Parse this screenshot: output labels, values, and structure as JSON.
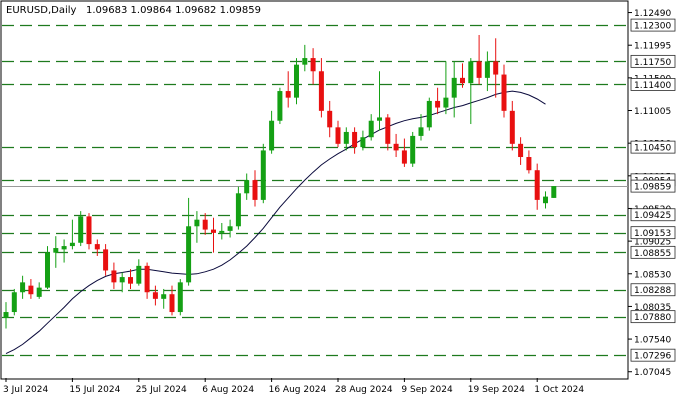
{
  "header": {
    "symbol_timeframe": "EURUSD,Daily",
    "ohlc": "1.09683 1.09864 1.09682 1.09859"
  },
  "chart_data": {
    "type": "candlestick",
    "symbol": "EURUSD",
    "timeframe": "Daily",
    "ylim": [
      1.0695,
      1.1265
    ],
    "y_ticks": [
      1.1249,
      1.11995,
      1.115,
      1.11005,
      1.1051,
      1.10015,
      1.0952,
      1.09025,
      1.0853,
      1.08035,
      1.0754,
      1.07045
    ],
    "y_tick_labels": [
      "1.12490",
      "1.11995",
      "1.11500",
      "1.11005",
      "1.10510",
      "1.10015",
      "1.09520",
      "1.09025",
      "1.08530",
      "1.08035",
      "1.07540",
      "1.07045"
    ],
    "x_tick_labels": [
      {
        "label": "3 Jul 2024",
        "bar": 0
      },
      {
        "label": "15 Jul 2024",
        "bar": 8
      },
      {
        "label": "25 Jul 2024",
        "bar": 16
      },
      {
        "label": "6 Aug 2024",
        "bar": 24
      },
      {
        "label": "16 Aug 2024",
        "bar": 32
      },
      {
        "label": "28 Aug 2024",
        "bar": 40
      },
      {
        "label": "9 Sep 2024",
        "bar": 48
      },
      {
        "label": "19 Sep 2024",
        "bar": 56
      },
      {
        "label": "1 Oct 2024",
        "bar": 64
      }
    ],
    "levels": [
      {
        "label": "1.12300",
        "value": 1.123
      },
      {
        "label": "1.11750",
        "value": 1.1175
      },
      {
        "label": "1.11400",
        "value": 1.114
      },
      {
        "label": "1.10450",
        "value": 1.1045
      },
      {
        "label": "1.09954",
        "value": 1.09954
      },
      {
        "label": "1.09425",
        "value": 1.09425
      },
      {
        "label": "1.09153",
        "value": 1.09153
      },
      {
        "label": "1.08855",
        "value": 1.08855
      },
      {
        "label": "1.08288",
        "value": 1.08288
      },
      {
        "label": "1.07880",
        "value": 1.0788
      },
      {
        "label": "1.07296",
        "value": 1.07296
      }
    ],
    "current_price": {
      "label": "1.09859",
      "value": 1.09859
    },
    "candles": [
      {
        "o": 1.0786,
        "h": 1.081,
        "l": 1.077,
        "c": 1.0795
      },
      {
        "o": 1.0795,
        "h": 1.083,
        "l": 1.079,
        "c": 1.0825
      },
      {
        "o": 1.0825,
        "h": 1.085,
        "l": 1.0815,
        "c": 1.084
      },
      {
        "o": 1.0835,
        "h": 1.0845,
        "l": 1.0815,
        "c": 1.0822
      },
      {
        "o": 1.0818,
        "h": 1.084,
        "l": 1.0815,
        "c": 1.0832
      },
      {
        "o": 1.0832,
        "h": 1.0895,
        "l": 1.083,
        "c": 1.0885
      },
      {
        "o": 1.0885,
        "h": 1.091,
        "l": 1.0862,
        "c": 1.0892
      },
      {
        "o": 1.089,
        "h": 1.0905,
        "l": 1.087,
        "c": 1.0895
      },
      {
        "o": 1.0895,
        "h": 1.0935,
        "l": 1.089,
        "c": 1.09
      },
      {
        "o": 1.09,
        "h": 1.0948,
        "l": 1.0895,
        "c": 1.094
      },
      {
        "o": 1.094,
        "h": 1.0945,
        "l": 1.089,
        "c": 1.0898
      },
      {
        "o": 1.0898,
        "h": 1.0905,
        "l": 1.088,
        "c": 1.089
      },
      {
        "o": 1.089,
        "h": 1.0898,
        "l": 1.085,
        "c": 1.0858
      },
      {
        "o": 1.0858,
        "h": 1.087,
        "l": 1.083,
        "c": 1.084
      },
      {
        "o": 1.084,
        "h": 1.0855,
        "l": 1.0825,
        "c": 1.0848
      },
      {
        "o": 1.0848,
        "h": 1.086,
        "l": 1.083,
        "c": 1.0838
      },
      {
        "o": 1.0838,
        "h": 1.0875,
        "l": 1.0835,
        "c": 1.0865
      },
      {
        "o": 1.0865,
        "h": 1.087,
        "l": 1.0815,
        "c": 1.0825
      },
      {
        "o": 1.0825,
        "h": 1.0835,
        "l": 1.0805,
        "c": 1.0815
      },
      {
        "o": 1.0815,
        "h": 1.083,
        "l": 1.08,
        "c": 1.0822
      },
      {
        "o": 1.0822,
        "h": 1.0835,
        "l": 1.079,
        "c": 1.0795
      },
      {
        "o": 1.0795,
        "h": 1.0845,
        "l": 1.079,
        "c": 1.084
      },
      {
        "o": 1.084,
        "h": 1.0968,
        "l": 1.0835,
        "c": 1.0925
      },
      {
        "o": 1.0925,
        "h": 1.0948,
        "l": 1.09,
        "c": 1.0935
      },
      {
        "o": 1.0935,
        "h": 1.0945,
        "l": 1.0912,
        "c": 1.092
      },
      {
        "o": 1.092,
        "h": 1.0938,
        "l": 1.0885,
        "c": 1.0915
      },
      {
        "o": 1.0915,
        "h": 1.093,
        "l": 1.0905,
        "c": 1.0918
      },
      {
        "o": 1.0918,
        "h": 1.0935,
        "l": 1.0908,
        "c": 1.0925
      },
      {
        "o": 1.0925,
        "h": 1.0985,
        "l": 1.092,
        "c": 1.0975
      },
      {
        "o": 1.0975,
        "h": 1.1005,
        "l": 1.0965,
        "c": 1.0995
      },
      {
        "o": 1.0995,
        "h": 1.101,
        "l": 1.0955,
        "c": 1.0965
      },
      {
        "o": 1.0965,
        "h": 1.105,
        "l": 1.096,
        "c": 1.104
      },
      {
        "o": 1.104,
        "h": 1.11,
        "l": 1.1035,
        "c": 1.1085
      },
      {
        "o": 1.1085,
        "h": 1.1135,
        "l": 1.108,
        "c": 1.113
      },
      {
        "o": 1.113,
        "h": 1.116,
        "l": 1.1105,
        "c": 1.112
      },
      {
        "o": 1.112,
        "h": 1.118,
        "l": 1.111,
        "c": 1.117
      },
      {
        "o": 1.117,
        "h": 1.12,
        "l": 1.116,
        "c": 1.118
      },
      {
        "o": 1.118,
        "h": 1.1195,
        "l": 1.114,
        "c": 1.116
      },
      {
        "o": 1.116,
        "h": 1.118,
        "l": 1.109,
        "c": 1.11
      },
      {
        "o": 1.11,
        "h": 1.1115,
        "l": 1.106,
        "c": 1.1075
      },
      {
        "o": 1.1075,
        "h": 1.1085,
        "l": 1.1045,
        "c": 1.105
      },
      {
        "o": 1.105,
        "h": 1.1075,
        "l": 1.104,
        "c": 1.1068
      },
      {
        "o": 1.1068,
        "h": 1.1075,
        "l": 1.1035,
        "c": 1.1045
      },
      {
        "o": 1.1045,
        "h": 1.107,
        "l": 1.104,
        "c": 1.106
      },
      {
        "o": 1.106,
        "h": 1.1095,
        "l": 1.1055,
        "c": 1.1085
      },
      {
        "o": 1.1085,
        "h": 1.116,
        "l": 1.107,
        "c": 1.109
      },
      {
        "o": 1.109,
        "h": 1.1095,
        "l": 1.104,
        "c": 1.105
      },
      {
        "o": 1.105,
        "h": 1.1065,
        "l": 1.103,
        "c": 1.104
      },
      {
        "o": 1.104,
        "h": 1.1058,
        "l": 1.1015,
        "c": 1.102
      },
      {
        "o": 1.102,
        "h": 1.1068,
        "l": 1.1015,
        "c": 1.1062
      },
      {
        "o": 1.1062,
        "h": 1.1095,
        "l": 1.1055,
        "c": 1.1075
      },
      {
        "o": 1.1075,
        "h": 1.112,
        "l": 1.107,
        "c": 1.1115
      },
      {
        "o": 1.1115,
        "h": 1.1135,
        "l": 1.1095,
        "c": 1.1105
      },
      {
        "o": 1.1105,
        "h": 1.1175,
        "l": 1.1095,
        "c": 1.112
      },
      {
        "o": 1.112,
        "h": 1.1175,
        "l": 1.109,
        "c": 1.115
      },
      {
        "o": 1.115,
        "h": 1.1172,
        "l": 1.1135,
        "c": 1.1142
      },
      {
        "o": 1.1142,
        "h": 1.118,
        "l": 1.108,
        "c": 1.1175
      },
      {
        "o": 1.1175,
        "h": 1.1215,
        "l": 1.114,
        "c": 1.115
      },
      {
        "o": 1.115,
        "h": 1.119,
        "l": 1.113,
        "c": 1.1175
      },
      {
        "o": 1.1175,
        "h": 1.121,
        "l": 1.112,
        "c": 1.1155
      },
      {
        "o": 1.1155,
        "h": 1.117,
        "l": 1.109,
        "c": 1.11
      },
      {
        "o": 1.11,
        "h": 1.1115,
        "l": 1.104,
        "c": 1.105
      },
      {
        "o": 1.105,
        "h": 1.106,
        "l": 1.1018,
        "c": 1.103
      },
      {
        "o": 1.103,
        "h": 1.104,
        "l": 1.1005,
        "c": 1.101
      },
      {
        "o": 1.101,
        "h": 1.102,
        "l": 1.095,
        "c": 1.0965
      },
      {
        "o": 1.096,
        "h": 1.0978,
        "l": 1.0952,
        "c": 1.097
      },
      {
        "o": 1.0968,
        "h": 1.0986,
        "l": 1.0968,
        "c": 1.0986
      }
    ],
    "ma": [
      1.0732,
      1.0738,
      1.0746,
      1.0756,
      1.0766,
      1.0778,
      1.079,
      1.0802,
      1.0815,
      1.0826,
      1.0835,
      1.0843,
      1.0849,
      1.0853,
      1.0855,
      1.0857,
      1.086,
      1.086,
      1.0858,
      1.0856,
      1.0854,
      1.0853,
      1.0852,
      1.0853,
      1.0856,
      1.086,
      1.0866,
      1.0874,
      1.0884,
      1.0895,
      1.0908,
      1.0922,
      1.0938,
      1.0954,
      1.0968,
      1.0982,
      1.0995,
      1.1007,
      1.1018,
      1.1027,
      1.1035,
      1.1042,
      1.105,
      1.1057,
      1.1064,
      1.1071,
      1.1076,
      1.1081,
      1.1085,
      1.1088,
      1.109,
      1.1093,
      1.1097,
      1.1101,
      1.1105,
      1.1108,
      1.1112,
      1.1116,
      1.112,
      1.1125,
      1.1128,
      1.113,
      1.1128,
      1.1124,
      1.1118,
      1.111
    ]
  },
  "colors": {
    "bull": "#14a014",
    "bear": "#e81010",
    "ma": "#0a0a3c",
    "level_line": "#1e7a1e",
    "level_label_bg": "#ffffff"
  }
}
